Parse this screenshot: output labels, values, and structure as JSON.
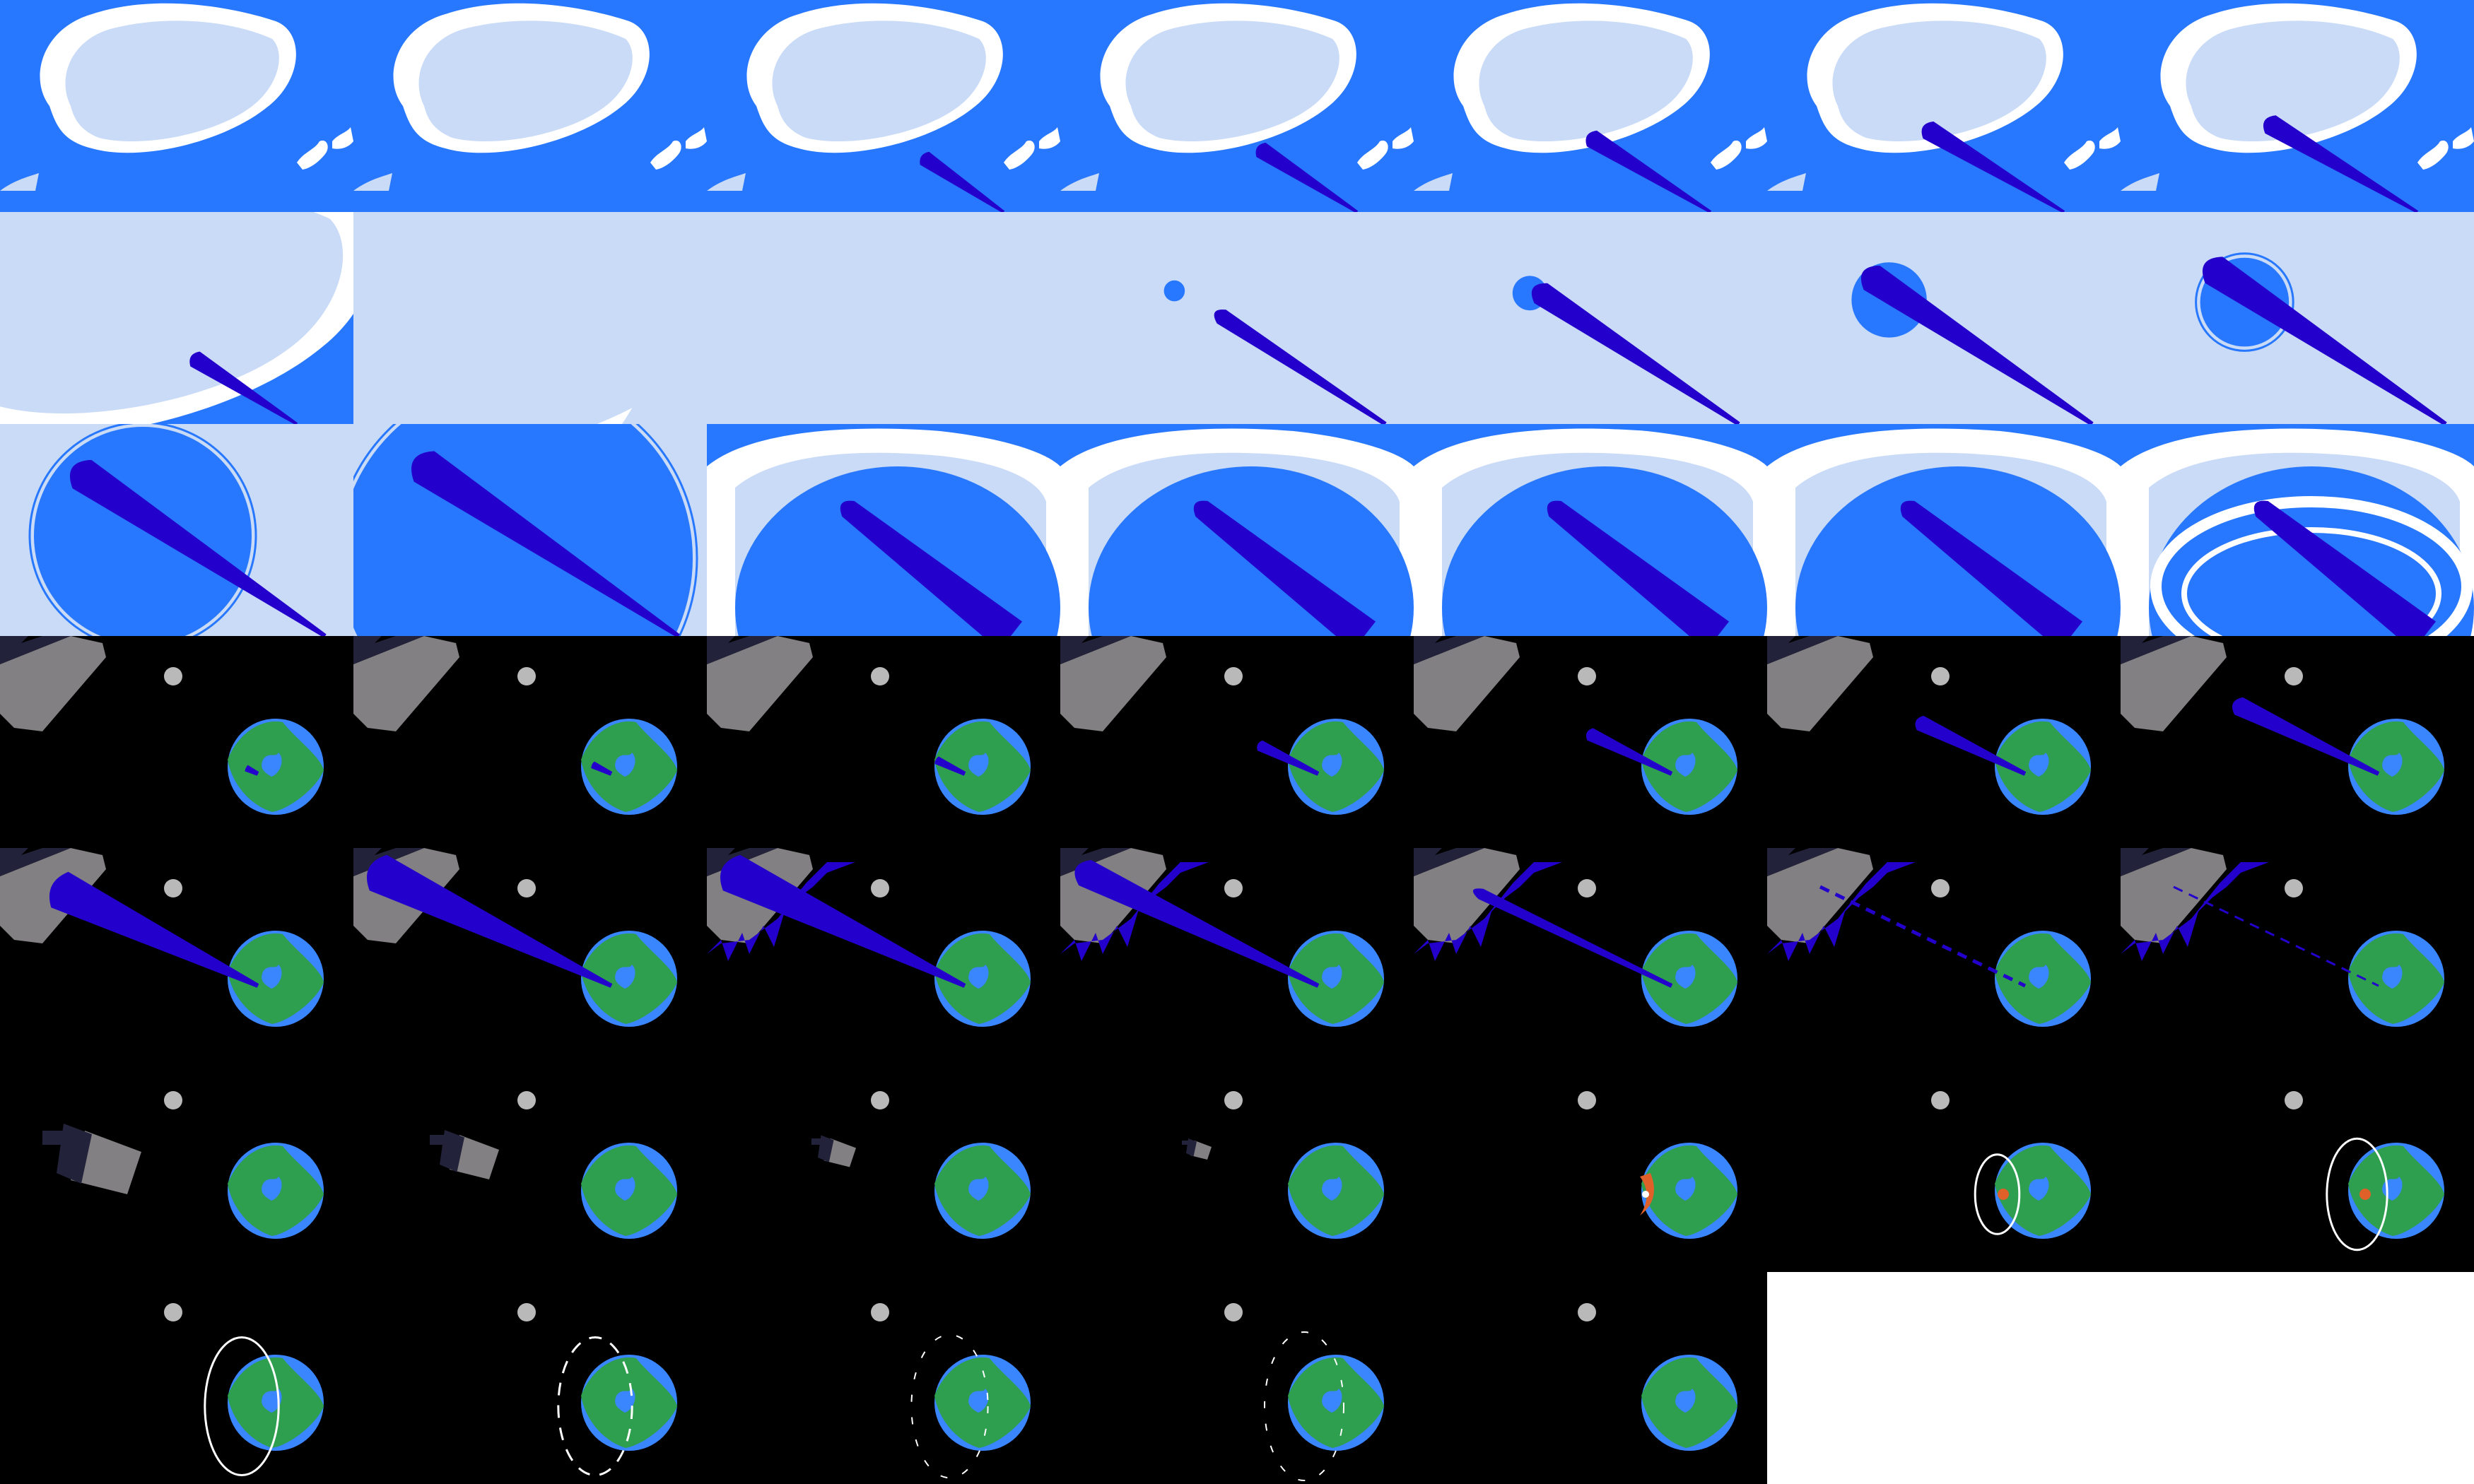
{
  "sheet": {
    "columns": 7,
    "rows": 7,
    "frame_count": 47,
    "background": "#ffffff"
  },
  "colors": {
    "sky": "#2878ff",
    "cloud_light": "#c9dbf7",
    "cloud_white": "#ffffff",
    "beam": "#2400cc",
    "space": "#000000",
    "earth_ocean": "#3a86ff",
    "earth_land": "#2e9e4f",
    "moon": "#b9b9b9",
    "ship_hull": "#828082",
    "ship_dark": "#22223a",
    "ring": "#ffffff",
    "fire": "#e0602a"
  },
  "frames": [
    {
      "scene": "sky",
      "zoom": 0,
      "beam": 0
    },
    {
      "scene": "sky",
      "zoom": 0,
      "beam": 0
    },
    {
      "scene": "sky",
      "zoom": 0,
      "beam": 0.2
    },
    {
      "scene": "sky",
      "zoom": 0,
      "beam": 0.35
    },
    {
      "scene": "sky",
      "zoom": 0,
      "beam": 0.55
    },
    {
      "scene": "sky",
      "zoom": 0,
      "beam": 0.7
    },
    {
      "scene": "sky",
      "zoom": 0,
      "beam": 0.8
    },
    {
      "scene": "sky",
      "zoom": 1,
      "beam": 0.4
    },
    {
      "scene": "sky",
      "zoom": 2,
      "beam": 0
    },
    {
      "scene": "cloud",
      "blob": 0,
      "beam": 0
    },
    {
      "scene": "cloud",
      "blob": 0.02,
      "beam": 0.2
    },
    {
      "scene": "cloud",
      "blob": 0.06,
      "beam": 0.5
    },
    {
      "scene": "cloud",
      "blob": 0.18,
      "beam": 0.7
    },
    {
      "scene": "cloud",
      "blob": 0.22,
      "beam": 0.8,
      "ring": true
    },
    {
      "scene": "cloud",
      "blob": 0.6,
      "beam": 0.9,
      "ring": true
    },
    {
      "scene": "cloud",
      "blob": 1.0,
      "beam": 1.0,
      "ring": true
    },
    {
      "scene": "hole",
      "beam": 1,
      "rim": 0
    },
    {
      "scene": "hole",
      "beam": 1,
      "rim": 0.1
    },
    {
      "scene": "hole",
      "beam": 1,
      "rim": 0.2
    },
    {
      "scene": "hole",
      "beam": 1,
      "rim": 0.3
    },
    {
      "scene": "hole",
      "beam": 1,
      "rim": 1,
      "swirl": true
    },
    {
      "scene": "space",
      "ship": "corner",
      "beam": 0.05
    },
    {
      "scene": "space",
      "ship": "corner",
      "beam": 0.08
    },
    {
      "scene": "space",
      "ship": "corner",
      "beam": 0.12
    },
    {
      "scene": "space",
      "ship": "corner",
      "beam": 0.25
    },
    {
      "scene": "space",
      "ship": "corner",
      "beam": 0.35
    },
    {
      "scene": "space",
      "ship": "corner",
      "beam": 0.45
    },
    {
      "scene": "space",
      "ship": "corner",
      "beam": 0.6
    },
    {
      "scene": "space",
      "ship": "corner",
      "beam": 0.85,
      "fat": true
    },
    {
      "scene": "space",
      "ship": "corner",
      "beam": 1,
      "fat": true
    },
    {
      "scene": "space",
      "ship": "corner",
      "beam": 1,
      "fat": true,
      "burst": 1
    },
    {
      "scene": "space",
      "ship": "corner",
      "beam": 1,
      "burst": 1
    },
    {
      "scene": "space",
      "ship": "corner",
      "beam": 1,
      "burst": 1,
      "thin": true
    },
    {
      "scene": "space",
      "ship": "corner",
      "beam": 1,
      "burst": 1,
      "dashed": true
    },
    {
      "scene": "space",
      "ship": "corner",
      "beam": 1,
      "burst": 1,
      "dashed": true,
      "faint": true
    },
    {
      "scene": "space",
      "ship": "flying",
      "shipScale": 1.0
    },
    {
      "scene": "space",
      "ship": "flying",
      "shipScale": 0.7
    },
    {
      "scene": "space",
      "ship": "flying",
      "shipScale": 0.45
    },
    {
      "scene": "space",
      "ship": "flying",
      "shipScale": 0.3
    },
    {
      "scene": "space",
      "impact": "fire"
    },
    {
      "scene": "space",
      "impact": "ring",
      "ringScale": 0.35
    },
    {
      "scene": "space",
      "impact": "ring",
      "ringScale": 0.65
    },
    {
      "scene": "space",
      "impact": "ring",
      "ringScale": 0.9
    },
    {
      "scene": "space",
      "impact": "dashedring",
      "ringScale": 0.9
    },
    {
      "scene": "space",
      "impact": "dashedring",
      "ringScale": 0.95,
      "faint": true
    },
    {
      "scene": "space",
      "impact": "dashedring",
      "ringScale": 1.0,
      "faint": true
    },
    {
      "scene": "space"
    }
  ]
}
